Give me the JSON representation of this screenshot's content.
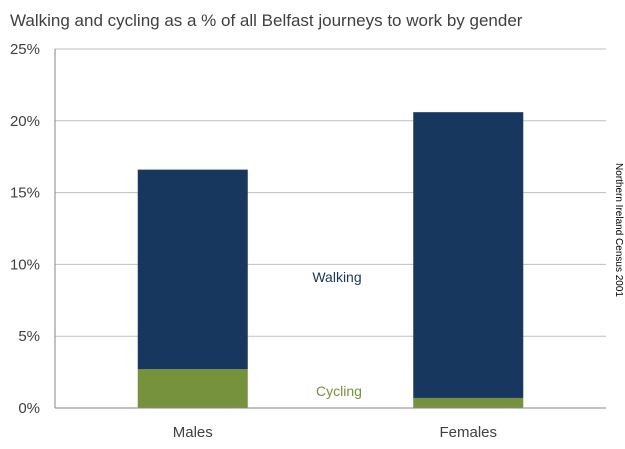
{
  "chart_data": {
    "type": "bar",
    "stacked": true,
    "title": "Walking and cycling as a % of all Belfast journeys to work by gender",
    "categories": [
      "Males",
      "Females"
    ],
    "series": [
      {
        "name": "Cycling",
        "values": [
          2.7,
          0.7
        ],
        "color": "#76923c"
      },
      {
        "name": "Walking",
        "values": [
          13.9,
          19.9
        ],
        "color": "#17375e"
      }
    ],
    "ylim": [
      0,
      25
    ],
    "yticks": [
      0,
      5,
      10,
      15,
      20,
      25
    ],
    "ytick_labels": [
      "0%",
      "5%",
      "10%",
      "15%",
      "20%",
      "25%"
    ],
    "grid": true,
    "source_note": "Northern Ireland Census 2001"
  }
}
